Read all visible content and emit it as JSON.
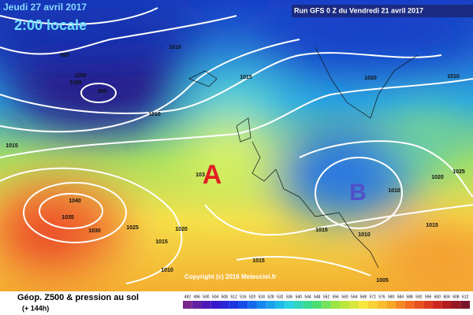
{
  "header": {
    "date": "Jeudi 27 avril 2017",
    "time": "2:00 locale",
    "run": "Run GFS 0 Z du Vendredi 21 avril 2017"
  },
  "isobars": [
    "995",
    "1000",
    "1005",
    "995",
    "1010",
    "1015",
    "1020",
    "1010",
    "1010",
    "1015",
    "1040",
    "1035",
    "1030",
    "1025",
    "1020",
    "1015",
    "1010",
    "1015",
    "1015",
    "1005",
    "1010",
    "1020",
    "1025",
    "1015",
    "1010",
    "103"
  ],
  "centers": [
    "A",
    "B"
  ],
  "copyright": "Copyright (c) 2016 Meteociel.fr",
  "footer": {
    "title": "Géop. Z500 & pression au sol",
    "lead": "(+ 144h)"
  },
  "scale": [
    492,
    496,
    500,
    504,
    508,
    512,
    516,
    520,
    524,
    528,
    532,
    536,
    540,
    544,
    548,
    552,
    556,
    560,
    564,
    568,
    572,
    576,
    580,
    584,
    588,
    592,
    596,
    600,
    604,
    608,
    612
  ]
}
